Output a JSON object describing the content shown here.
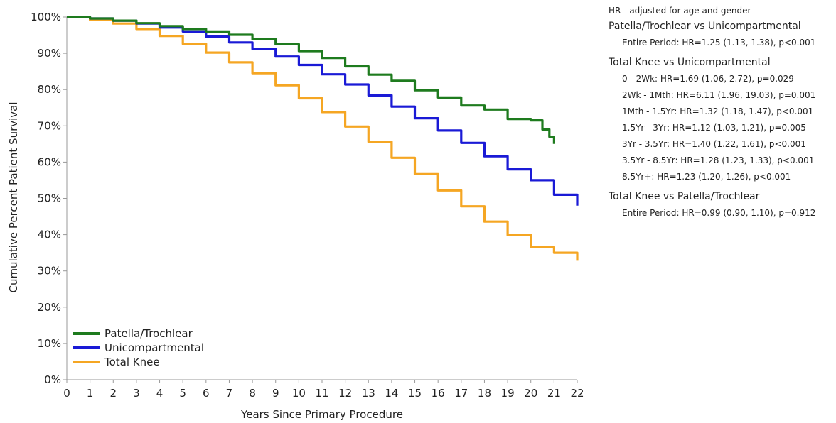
{
  "chart_data": {
    "type": "line",
    "xlabel": "Years Since Primary Procedure",
    "ylabel": "Cumulative Percent Patient Survival",
    "xlim": [
      0,
      22
    ],
    "ylim": [
      0,
      100
    ],
    "x_ticks": [
      "0",
      "1",
      "2",
      "3",
      "4",
      "5",
      "6",
      "7",
      "8",
      "9",
      "10",
      "11",
      "12",
      "13",
      "14",
      "15",
      "16",
      "17",
      "18",
      "19",
      "20",
      "21",
      "22"
    ],
    "y_ticks": [
      "0%",
      "10%",
      "20%",
      "30%",
      "40%",
      "50%",
      "60%",
      "70%",
      "80%",
      "90%",
      "100%"
    ],
    "grid": false,
    "legend_position": "bottom-left",
    "step": true,
    "series": [
      {
        "name": "Patella/Trochlear",
        "color": "#1e7b1e",
        "x": [
          0,
          1,
          2,
          3,
          4,
          5,
          6,
          7,
          8,
          9,
          10,
          11,
          12,
          13,
          14,
          15,
          16,
          17,
          18,
          19,
          20,
          20.5,
          20.8,
          21
        ],
        "y": [
          100,
          99.6,
          99,
          98.3,
          97.5,
          96.7,
          96,
          95.1,
          93.9,
          92.5,
          90.6,
          88.7,
          86.4,
          84.1,
          82.4,
          79.8,
          77.8,
          75.6,
          74.5,
          71.9,
          71.5,
          69,
          67,
          65
        ]
      },
      {
        "name": "Unicompartmental",
        "color": "#1a1ad6",
        "x": [
          0,
          1,
          2,
          3,
          4,
          5,
          6,
          7,
          8,
          9,
          10,
          11,
          12,
          13,
          14,
          15,
          16,
          17,
          18,
          19,
          20,
          21,
          22
        ],
        "y": [
          100,
          99.6,
          99,
          98.2,
          97.1,
          96,
          94.6,
          93,
          91.2,
          89.1,
          86.8,
          84.2,
          81.4,
          78.4,
          75.3,
          72.1,
          68.7,
          65.3,
          61.6,
          58,
          55,
          51,
          48
        ]
      },
      {
        "name": "Total Knee",
        "color": "#f5a623",
        "x": [
          0,
          1,
          2,
          3,
          4,
          5,
          6,
          7,
          8,
          9,
          10,
          11,
          12,
          13,
          14,
          15,
          16,
          17,
          18,
          19,
          20,
          21,
          22
        ],
        "y": [
          100,
          99.2,
          98.2,
          96.7,
          94.8,
          92.6,
          90.2,
          87.5,
          84.5,
          81.2,
          77.6,
          73.8,
          69.8,
          65.6,
          61.2,
          56.7,
          52.2,
          47.8,
          43.6,
          39.9,
          36.6,
          35,
          32.8
        ]
      }
    ]
  },
  "hr_panel": {
    "note": "HR - adjusted for age and gender",
    "groups": [
      {
        "heading": "Patella/Trochlear vs Unicompartmental",
        "items": [
          "Entire Period: HR=1.25 (1.13, 1.38), p<0.001"
        ]
      },
      {
        "heading": "Total Knee vs Unicompartmental",
        "items": [
          "0 - 2Wk: HR=1.69 (1.06, 2.72), p=0.029",
          "2Wk - 1Mth: HR=6.11 (1.96, 19.03), p=0.001",
          "1Mth - 1.5Yr: HR=1.32 (1.18, 1.47), p<0.001",
          "1.5Yr - 3Yr: HR=1.12 (1.03, 1.21), p=0.005",
          "3Yr - 3.5Yr: HR=1.40 (1.22, 1.61), p<0.001",
          "3.5Yr - 8.5Yr: HR=1.28 (1.23, 1.33), p<0.001",
          "8.5Yr+: HR=1.23 (1.20, 1.26), p<0.001"
        ]
      },
      {
        "heading": "Total Knee vs Patella/Trochlear",
        "items": [
          "Entire Period: HR=0.99 (0.90, 1.10), p=0.912"
        ]
      }
    ]
  }
}
